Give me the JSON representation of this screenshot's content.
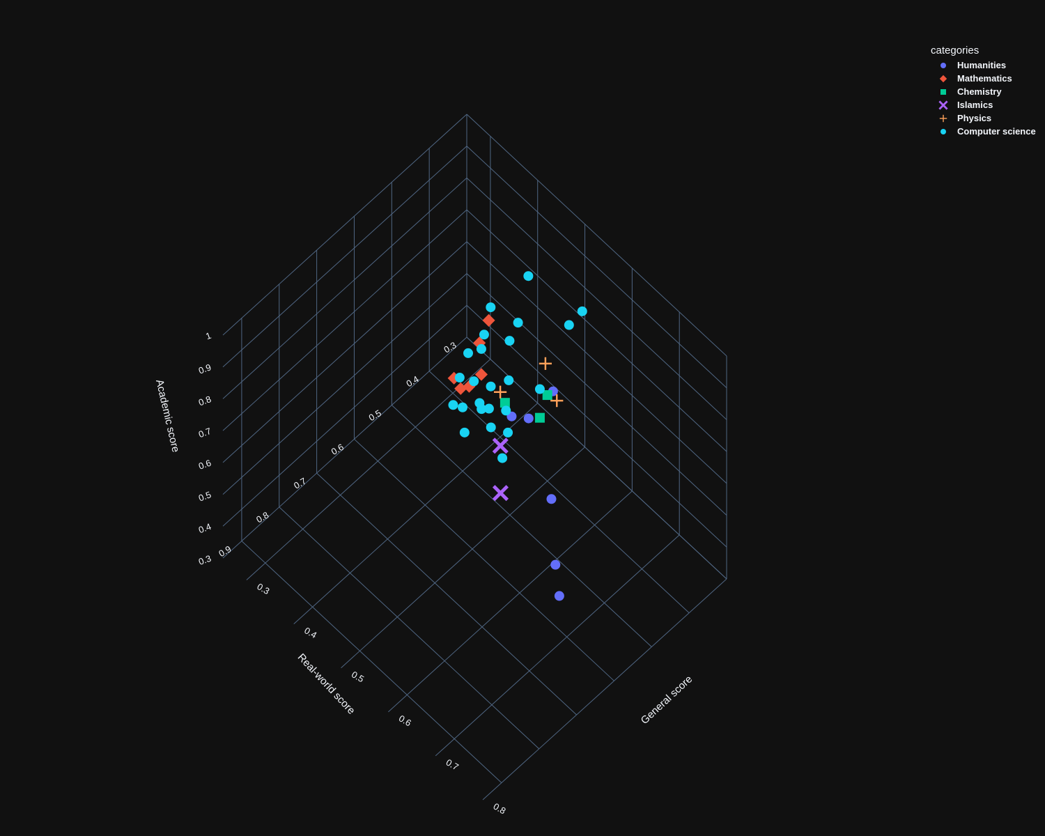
{
  "chart_data": {
    "type": "scatter3d",
    "title": "",
    "legend": {
      "title": "categories",
      "placement": "top-right",
      "items": [
        {
          "name": "Humanities",
          "color": "#636efa",
          "symbol": "circle"
        },
        {
          "name": "Mathematics",
          "color": "#EF553B",
          "symbol": "diamond"
        },
        {
          "name": "Chemistry",
          "color": "#00cc96",
          "symbol": "square"
        },
        {
          "name": "Islamics",
          "color": "#ab63fa",
          "symbol": "x"
        },
        {
          "name": "Physics",
          "color": "#FFA15A",
          "symbol": "cross"
        },
        {
          "name": "Computer science",
          "color": "#19d3f3",
          "symbol": "circle"
        }
      ]
    },
    "axes": {
      "x": {
        "label": "General score",
        "range": [
          0.25,
          0.8
        ],
        "ticks": [
          "0.3",
          "0.4",
          "0.5",
          "0.6",
          "0.7",
          "0.8"
        ]
      },
      "y": {
        "label": "Real-world score",
        "range": [
          0.3,
          0.95
        ],
        "ticks": [
          "0.3",
          "0.4",
          "0.5",
          "0.6",
          "0.7",
          "0.8",
          "0.9"
        ]
      },
      "z": {
        "label": "Academic score",
        "range": [
          0.3,
          1.0
        ],
        "ticks": [
          "0.3",
          "0.4",
          "0.5",
          "0.6",
          "0.7",
          "0.8",
          "0.9",
          "1"
        ]
      }
    },
    "grid": true,
    "series": [
      {
        "name": "Humanities",
        "points": [
          [
            0.52,
            0.41,
            0.62
          ],
          [
            0.5,
            0.45,
            0.55
          ],
          [
            0.48,
            0.47,
            0.55
          ],
          [
            0.58,
            0.49,
            0.45
          ],
          [
            0.66,
            0.58,
            0.45
          ],
          [
            0.7,
            0.62,
            0.45
          ]
        ]
      },
      {
        "name": "Mathematics",
        "points": [
          [
            0.38,
            0.43,
            0.6
          ],
          [
            0.36,
            0.38,
            0.59
          ],
          [
            0.4,
            0.45,
            0.55
          ],
          [
            0.39,
            0.47,
            0.52
          ],
          [
            0.38,
            0.48,
            0.51
          ],
          [
            0.35,
            0.46,
            0.48
          ]
        ]
      },
      {
        "name": "Chemistry",
        "points": [
          [
            0.5,
            0.4,
            0.57
          ],
          [
            0.5,
            0.42,
            0.52
          ],
          [
            0.45,
            0.45,
            0.53
          ]
        ]
      },
      {
        "name": "Islamics",
        "points": [
          [
            0.48,
            0.5,
            0.49
          ],
          [
            0.52,
            0.55,
            0.45
          ]
        ]
      },
      {
        "name": "Physics",
        "points": [
          [
            0.48,
            0.38,
            0.62
          ],
          [
            0.52,
            0.4,
            0.58
          ],
          [
            0.44,
            0.45,
            0.55
          ]
        ]
      },
      {
        "name": "Computer science",
        "points": [
          [
            0.55,
            0.37,
            0.87
          ],
          [
            0.53,
            0.38,
            0.81
          ],
          [
            0.42,
            0.35,
            0.78
          ],
          [
            0.43,
            0.39,
            0.69
          ],
          [
            0.38,
            0.4,
            0.68
          ],
          [
            0.42,
            0.4,
            0.63
          ],
          [
            0.5,
            0.42,
            0.61
          ],
          [
            0.4,
            0.45,
            0.63
          ],
          [
            0.39,
            0.43,
            0.64
          ],
          [
            0.45,
            0.44,
            0.59
          ],
          [
            0.38,
            0.46,
            0.6
          ],
          [
            0.37,
            0.47,
            0.52
          ],
          [
            0.4,
            0.47,
            0.55
          ],
          [
            0.42,
            0.45,
            0.54
          ],
          [
            0.42,
            0.48,
            0.52
          ],
          [
            0.44,
            0.48,
            0.53
          ],
          [
            0.46,
            0.46,
            0.53
          ],
          [
            0.48,
            0.48,
            0.51
          ],
          [
            0.42,
            0.52,
            0.47
          ],
          [
            0.38,
            0.5,
            0.48
          ],
          [
            0.4,
            0.5,
            0.5
          ],
          [
            0.5,
            0.52,
            0.5
          ],
          [
            0.46,
            0.5,
            0.52
          ],
          [
            0.44,
            0.5,
            0.55
          ]
        ]
      }
    ]
  }
}
